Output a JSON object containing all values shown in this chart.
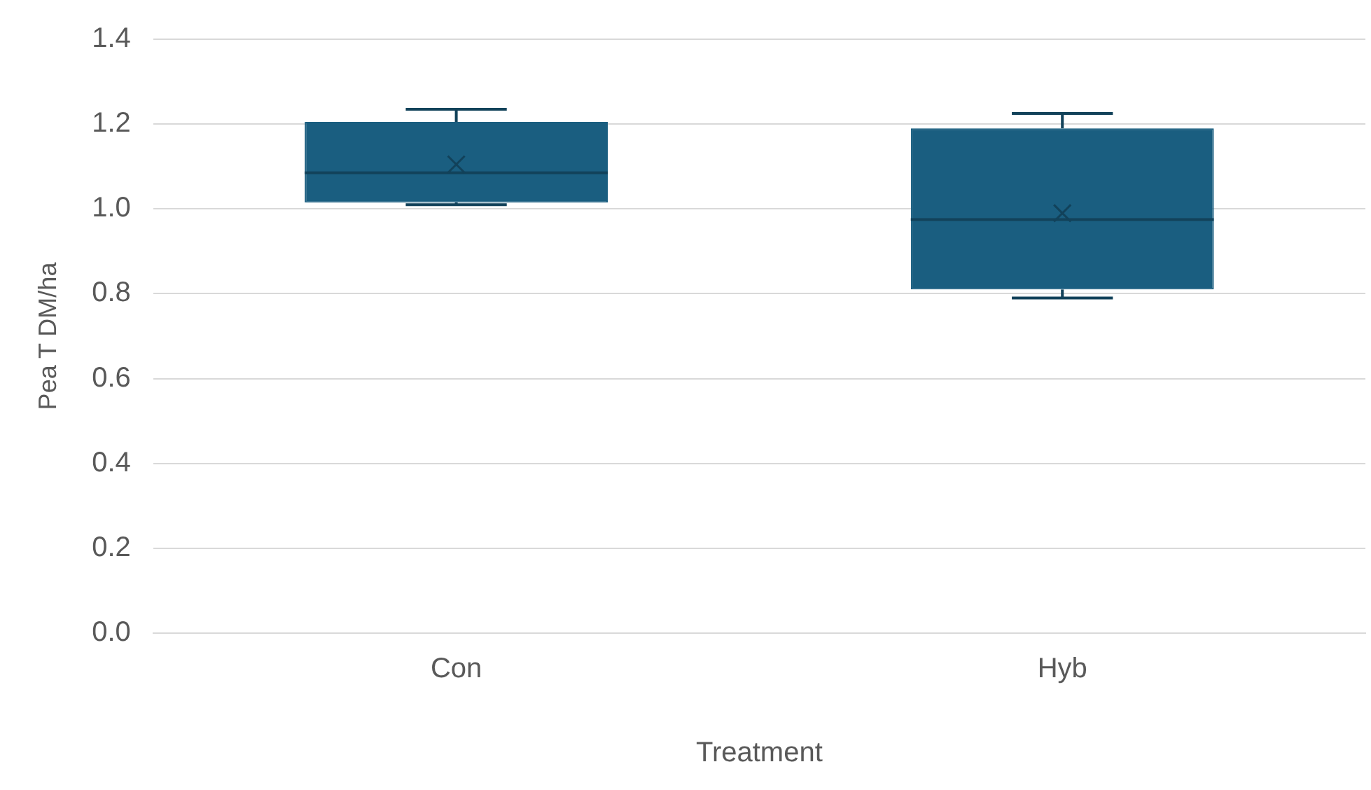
{
  "chart_data": {
    "type": "box",
    "xlabel": "Treatment",
    "ylabel": "Pea T DM/ha",
    "categories": [
      "Con",
      "Hyb"
    ],
    "color": "#1a5e80",
    "boxes": [
      {
        "low": 1.01,
        "q1": 1.015,
        "median": 1.085,
        "q3": 1.205,
        "high": 1.235,
        "mean": 1.105
      },
      {
        "low": 0.79,
        "q1": 0.81,
        "median": 0.975,
        "q3": 1.19,
        "high": 1.225,
        "mean": 0.99
      }
    ],
    "ylim": [
      0,
      1.4
    ],
    "yticks": [
      {
        "value": 0,
        "label": "0.0"
      },
      {
        "value": 0.2,
        "label": "0.2"
      },
      {
        "value": 0.4,
        "label": "0.4"
      },
      {
        "value": 0.6,
        "label": "0.6"
      },
      {
        "value": 0.8,
        "label": "0.8"
      },
      {
        "value": 1,
        "label": "1.0"
      },
      {
        "value": 1.2,
        "label": "1.2"
      },
      {
        "value": 1.4,
        "label": "1.4"
      }
    ],
    "grid": "y",
    "legend": false
  }
}
